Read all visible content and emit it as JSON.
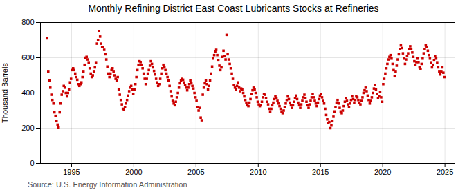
{
  "chart_data": {
    "type": "scatter",
    "title": "Monthly Refining District East Coast Lubricants Stocks at Refineries",
    "ylabel": "Thousand Barrels",
    "annotations": [
      "Source: U.S. Energy Information Administration"
    ],
    "color": "#cc0000",
    "marker": "square",
    "grid": true,
    "xlim": [
      1992.5,
      2025.8
    ],
    "xticks": [
      1995,
      2000,
      2005,
      2010,
      2015,
      2020,
      2025
    ],
    "ylim": [
      0,
      800
    ],
    "yticks": [
      0,
      200,
      400,
      600,
      800
    ],
    "x": [
      1993.042,
      1993.125,
      1993.208,
      1993.292,
      1993.375,
      1993.458,
      1993.542,
      1993.625,
      1993.708,
      1993.792,
      1993.875,
      1993.958,
      1994.042,
      1994.125,
      1994.208,
      1994.292,
      1994.375,
      1994.458,
      1994.542,
      1994.625,
      1994.708,
      1994.792,
      1994.875,
      1994.958,
      1995.042,
      1995.125,
      1995.208,
      1995.292,
      1995.375,
      1995.458,
      1995.542,
      1995.625,
      1995.708,
      1995.792,
      1995.875,
      1995.958,
      1996.042,
      1996.125,
      1996.208,
      1996.292,
      1996.375,
      1996.458,
      1996.542,
      1996.625,
      1996.708,
      1996.792,
      1996.875,
      1996.958,
      1997.042,
      1997.125,
      1997.208,
      1997.292,
      1997.375,
      1997.458,
      1997.542,
      1997.625,
      1997.708,
      1997.792,
      1997.875,
      1997.958,
      1998.042,
      1998.125,
      1998.208,
      1998.292,
      1998.375,
      1998.458,
      1998.542,
      1998.625,
      1998.708,
      1998.792,
      1998.875,
      1998.958,
      1999.042,
      1999.125,
      1999.208,
      1999.292,
      1999.375,
      1999.458,
      1999.542,
      1999.625,
      1999.708,
      1999.792,
      1999.875,
      1999.958,
      2000.042,
      2000.125,
      2000.208,
      2000.292,
      2000.375,
      2000.458,
      2000.542,
      2000.625,
      2000.708,
      2000.792,
      2000.875,
      2000.958,
      2001.042,
      2001.125,
      2001.208,
      2001.292,
      2001.375,
      2001.458,
      2001.542,
      2001.625,
      2001.708,
      2001.792,
      2001.875,
      2001.958,
      2002.042,
      2002.125,
      2002.208,
      2002.292,
      2002.375,
      2002.458,
      2002.542,
      2002.625,
      2002.708,
      2002.792,
      2002.875,
      2002.958,
      2003.042,
      2003.125,
      2003.208,
      2003.292,
      2003.375,
      2003.458,
      2003.542,
      2003.625,
      2003.708,
      2003.792,
      2003.875,
      2003.958,
      2004.042,
      2004.125,
      2004.208,
      2004.292,
      2004.375,
      2004.458,
      2004.542,
      2004.625,
      2004.708,
      2004.792,
      2004.875,
      2004.958,
      2005.042,
      2005.125,
      2005.208,
      2005.292,
      2005.375,
      2005.458,
      2005.542,
      2005.625,
      2005.708,
      2005.792,
      2005.875,
      2005.958,
      2006.042,
      2006.125,
      2006.208,
      2006.292,
      2006.375,
      2006.458,
      2006.542,
      2006.625,
      2006.708,
      2006.792,
      2006.875,
      2006.958,
      2007.042,
      2007.125,
      2007.208,
      2007.292,
      2007.375,
      2007.458,
      2007.542,
      2007.625,
      2007.708,
      2007.792,
      2007.875,
      2007.958,
      2008.042,
      2008.125,
      2008.208,
      2008.292,
      2008.375,
      2008.458,
      2008.542,
      2008.625,
      2008.708,
      2008.792,
      2008.875,
      2008.958,
      2009.042,
      2009.125,
      2009.208,
      2009.292,
      2009.375,
      2009.458,
      2009.542,
      2009.625,
      2009.708,
      2009.792,
      2009.875,
      2009.958,
      2010.042,
      2010.125,
      2010.208,
      2010.292,
      2010.375,
      2010.458,
      2010.542,
      2010.625,
      2010.708,
      2010.792,
      2010.875,
      2010.958,
      2011.042,
      2011.125,
      2011.208,
      2011.292,
      2011.375,
      2011.458,
      2011.542,
      2011.625,
      2011.708,
      2011.792,
      2011.875,
      2011.958,
      2012.042,
      2012.125,
      2012.208,
      2012.292,
      2012.375,
      2012.458,
      2012.542,
      2012.625,
      2012.708,
      2012.792,
      2012.875,
      2012.958,
      2013.042,
      2013.125,
      2013.208,
      2013.292,
      2013.375,
      2013.458,
      2013.542,
      2013.625,
      2013.708,
      2013.792,
      2013.875,
      2013.958,
      2014.042,
      2014.125,
      2014.208,
      2014.292,
      2014.375,
      2014.458,
      2014.542,
      2014.625,
      2014.708,
      2014.792,
      2014.875,
      2014.958,
      2015.042,
      2015.125,
      2015.208,
      2015.292,
      2015.375,
      2015.458,
      2015.542,
      2015.625,
      2015.708,
      2015.792,
      2015.875,
      2015.958,
      2016.042,
      2016.125,
      2016.208,
      2016.292,
      2016.375,
      2016.458,
      2016.542,
      2016.625,
      2016.708,
      2016.792,
      2016.875,
      2016.958,
      2017.042,
      2017.125,
      2017.208,
      2017.292,
      2017.375,
      2017.458,
      2017.542,
      2017.625,
      2017.708,
      2017.792,
      2017.875,
      2017.958,
      2018.042,
      2018.125,
      2018.208,
      2018.292,
      2018.375,
      2018.458,
      2018.542,
      2018.625,
      2018.708,
      2018.792,
      2018.875,
      2018.958,
      2019.042,
      2019.125,
      2019.208,
      2019.292,
      2019.375,
      2019.458,
      2019.542,
      2019.625,
      2019.708,
      2019.792,
      2019.875,
      2019.958,
      2020.042,
      2020.125,
      2020.208,
      2020.292,
      2020.375,
      2020.458,
      2020.542,
      2020.625,
      2020.708,
      2020.792,
      2020.875,
      2020.958,
      2021.042,
      2021.125,
      2021.208,
      2021.292,
      2021.375,
      2021.458,
      2021.542,
      2021.625,
      2021.708,
      2021.792,
      2021.875,
      2021.958,
      2022.042,
      2022.125,
      2022.208,
      2022.292,
      2022.375,
      2022.458,
      2022.542,
      2022.625,
      2022.708,
      2022.792,
      2022.875,
      2022.958,
      2023.042,
      2023.125,
      2023.208,
      2023.292,
      2023.375,
      2023.458,
      2023.542,
      2023.625,
      2023.708,
      2023.792,
      2023.875,
      2023.958,
      2024.042,
      2024.125,
      2024.208,
      2024.292,
      2024.375,
      2024.458,
      2024.542,
      2024.625,
      2024.708,
      2024.792,
      2024.875,
      2024.958
    ],
    "values": [
      710,
      520,
      470,
      430,
      390,
      360,
      340,
      290,
      270,
      240,
      220,
      205,
      290,
      340,
      390,
      410,
      440,
      430,
      400,
      380,
      400,
      420,
      460,
      480,
      530,
      540,
      530,
      510,
      490,
      475,
      450,
      440,
      450,
      460,
      490,
      520,
      560,
      600,
      605,
      590,
      570,
      540,
      510,
      490,
      500,
      520,
      545,
      570,
      680,
      700,
      750,
      720,
      680,
      660,
      660,
      645,
      620,
      590,
      550,
      510,
      490,
      510,
      530,
      540,
      520,
      500,
      480,
      470,
      490,
      420,
      390,
      360,
      335,
      310,
      305,
      320,
      340,
      360,
      385,
      410,
      430,
      440,
      420,
      395,
      420,
      450,
      490,
      530,
      560,
      580,
      575,
      560,
      540,
      510,
      480,
      450,
      480,
      510,
      530,
      555,
      580,
      565,
      545,
      525,
      505,
      480,
      460,
      440,
      450,
      480,
      510,
      540,
      560,
      545,
      530,
      510,
      490,
      470,
      440,
      410,
      380,
      355,
      340,
      330,
      350,
      375,
      400,
      430,
      455,
      470,
      480,
      475,
      460,
      445,
      430,
      415,
      430,
      450,
      470,
      455,
      440,
      425,
      400,
      375,
      355,
      320,
      300,
      315,
      260,
      245,
      390,
      430,
      455,
      470,
      450,
      420,
      440,
      470,
      510,
      550,
      595,
      615,
      635,
      645,
      615,
      585,
      555,
      530,
      545,
      605,
      640,
      610,
      590,
      730,
      620,
      590,
      565,
      540,
      510,
      480,
      445,
      430,
      420,
      440,
      460,
      430,
      410,
      425,
      420,
      400,
      380,
      360,
      345,
      330,
      325,
      345,
      365,
      395,
      415,
      430,
      420,
      400,
      375,
      350,
      335,
      325,
      330,
      350,
      375,
      395,
      390,
      370,
      350,
      335,
      310,
      295,
      310,
      330,
      345,
      365,
      380,
      370,
      355,
      340,
      325,
      310,
      295,
      285,
      300,
      320,
      340,
      360,
      380,
      365,
      345,
      330,
      315,
      330,
      350,
      370,
      385,
      365,
      345,
      330,
      315,
      335,
      355,
      375,
      390,
      370,
      350,
      330,
      315,
      335,
      355,
      375,
      395,
      375,
      355,
      340,
      325,
      345,
      365,
      385,
      395,
      375,
      355,
      340,
      310,
      275,
      250,
      230,
      235,
      200,
      215,
      240,
      265,
      295,
      320,
      345,
      360,
      340,
      315,
      295,
      285,
      300,
      325,
      350,
      370,
      355,
      335,
      320,
      340,
      360,
      380,
      365,
      345,
      360,
      380,
      375,
      360,
      345,
      335,
      355,
      375,
      400,
      415,
      430,
      410,
      385,
      360,
      340,
      355,
      375,
      400,
      425,
      445,
      420,
      395,
      370,
      380,
      405,
      375,
      350,
      450,
      480,
      510,
      540,
      565,
      590,
      605,
      615,
      595,
      565,
      530,
      495,
      520,
      555,
      590,
      620,
      650,
      670,
      655,
      625,
      595,
      565,
      590,
      610,
      625,
      650,
      665,
      650,
      630,
      605,
      580,
      560,
      575,
      595,
      575,
      545,
      535,
      565,
      595,
      625,
      650,
      670,
      660,
      640,
      615,
      595,
      570,
      545,
      560,
      585,
      610,
      595,
      570,
      545,
      520,
      505,
      520,
      545,
      515,
      490
    ]
  }
}
